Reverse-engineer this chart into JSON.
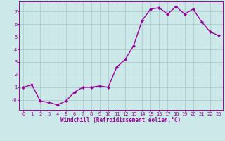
{
  "x": [
    0,
    1,
    2,
    3,
    4,
    5,
    6,
    7,
    8,
    9,
    10,
    11,
    12,
    13,
    14,
    15,
    16,
    17,
    18,
    19,
    20,
    21,
    22,
    23
  ],
  "y": [
    1.0,
    1.2,
    -0.1,
    -0.2,
    -0.4,
    -0.1,
    0.6,
    1.0,
    1.0,
    1.1,
    1.0,
    2.6,
    3.2,
    4.3,
    6.3,
    7.2,
    7.3,
    6.8,
    7.4,
    6.8,
    7.2,
    6.2,
    5.4,
    5.1
  ],
  "line_color": "#990099",
  "marker": "D",
  "marker_size": 2.0,
  "bg_color": "#cce8e8",
  "grid_color": "#aacccc",
  "xlabel": "Windchill (Refroidissement éolien,°C)",
  "xlim": [
    -0.5,
    23.5
  ],
  "ylim": [
    -0.8,
    7.8
  ],
  "yticks": [
    0,
    1,
    2,
    3,
    4,
    5,
    6,
    7
  ],
  "ytick_labels": [
    "-0",
    "1",
    "2",
    "3",
    "4",
    "5",
    "6",
    "7"
  ],
  "xticks": [
    0,
    1,
    2,
    3,
    4,
    5,
    6,
    7,
    8,
    9,
    10,
    11,
    12,
    13,
    14,
    15,
    16,
    17,
    18,
    19,
    20,
    21,
    22,
    23
  ],
  "axis_label_color": "#990099",
  "tick_color": "#990099",
  "spine_color": "#990099",
  "line_width": 1.0,
  "tick_fontsize": 5.0,
  "xlabel_fontsize": 5.5
}
